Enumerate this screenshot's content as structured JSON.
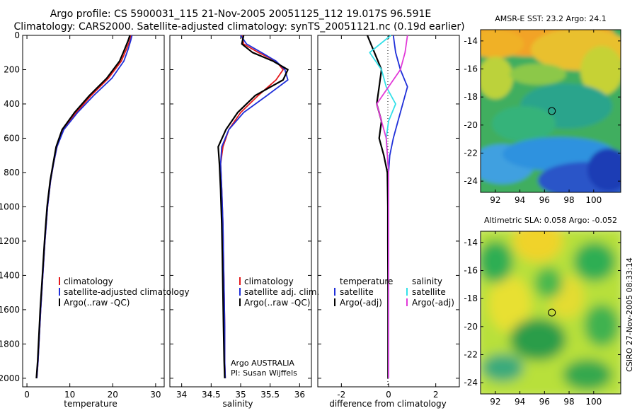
{
  "header": {
    "line1": "Argo profile: CS 5900031_115 21-Nov-2005 20051125_112 19.017S 96.591E",
    "line2": "Climatology: CARS2000. Satellite-adjusted climatology: synTS_20051121.nc (0.19d earlier)"
  },
  "colors": {
    "climatology": "#e41a1c",
    "satellite": "#1f2fd9",
    "argo": "#000000",
    "salinity_sat": "#33e0e8",
    "salinity_argo": "#e23ad8"
  },
  "footer": {
    "agency": "Argo AUSTRALIA",
    "pi": "PI: Susan Wijffels",
    "credit": "CSIRO 27-Nov-2005 08:33:14"
  },
  "chart_data": [
    {
      "type": "line",
      "title": "",
      "xlabel": "temperature",
      "ylabel": "",
      "xlim": [
        -1,
        32
      ],
      "ylim": [
        2050,
        0
      ],
      "xticks": [
        0,
        10,
        20,
        30
      ],
      "yticks": [
        0,
        200,
        400,
        600,
        800,
        1000,
        1200,
        1400,
        1600,
        1800,
        2000
      ],
      "legend": [
        "climatology",
        "satellite-adjusted climatology",
        "Argo(..raw -QC)"
      ],
      "series": [
        {
          "name": "climatology",
          "color": "#e41a1c",
          "x": [
            24.3,
            24.0,
            23.2,
            22.0,
            19.0,
            15.0,
            11.5,
            8.5,
            7.0,
            6.2,
            5.5,
            4.8,
            4.2,
            3.7,
            3.2,
            2.9,
            2.6,
            2.3
          ],
          "y": [
            0,
            30,
            80,
            150,
            250,
            350,
            450,
            550,
            650,
            750,
            850,
            1000,
            1200,
            1400,
            1600,
            1750,
            1900,
            2000
          ]
        },
        {
          "name": "satellite-adjusted climatology",
          "color": "#1f2fd9",
          "x": [
            24.5,
            24.2,
            23.6,
            22.6,
            19.8,
            15.6,
            11.8,
            8.6,
            7.0,
            6.2,
            5.5,
            4.8,
            4.2,
            3.7,
            3.2,
            2.9,
            2.6,
            2.3
          ],
          "y": [
            0,
            30,
            80,
            150,
            250,
            350,
            450,
            550,
            650,
            750,
            850,
            1000,
            1200,
            1400,
            1600,
            1750,
            1900,
            2000
          ]
        },
        {
          "name": "Argo(..raw -QC)",
          "color": "#000000",
          "x": [
            24.0,
            23.6,
            22.8,
            21.6,
            18.6,
            14.6,
            11.1,
            8.2,
            6.8,
            6.1,
            5.4,
            4.7,
            4.1,
            3.6,
            3.1,
            2.8,
            2.5,
            2.2
          ],
          "y": [
            0,
            30,
            80,
            150,
            250,
            350,
            450,
            550,
            650,
            750,
            850,
            1000,
            1200,
            1400,
            1600,
            1750,
            1900,
            2000
          ]
        }
      ]
    },
    {
      "type": "line",
      "title": "",
      "xlabel": "salinity",
      "ylabel": "",
      "xlim": [
        33.8,
        36.2
      ],
      "ylim": [
        2050,
        0
      ],
      "xticks": [
        34,
        34.5,
        35,
        35.5,
        36
      ],
      "xticklabels": [
        "34",
        "34.5",
        "35",
        "35.5",
        "36"
      ],
      "legend": [
        "climatology",
        "satellite adj. clim.",
        "Argo(..raw -QC)"
      ],
      "series": [
        {
          "name": "climatology",
          "color": "#e41a1c",
          "x": [
            35.02,
            35.05,
            35.3,
            35.6,
            35.72,
            35.6,
            35.3,
            35.0,
            34.8,
            34.7,
            34.66,
            34.68,
            34.7,
            34.71,
            34.72,
            34.73,
            34.73,
            34.74
          ],
          "y": [
            0,
            50,
            100,
            150,
            200,
            260,
            350,
            450,
            550,
            650,
            750,
            900,
            1100,
            1300,
            1500,
            1700,
            1900,
            2000
          ]
        },
        {
          "name": "satellite adj. clim.",
          "color": "#1f2fd9",
          "x": [
            35.0,
            35.1,
            35.35,
            35.6,
            35.75,
            35.8,
            35.45,
            35.05,
            34.8,
            34.68,
            34.66,
            34.68,
            34.7,
            34.71,
            34.72,
            34.73,
            34.73,
            34.74
          ],
          "y": [
            0,
            50,
            100,
            150,
            200,
            260,
            350,
            450,
            550,
            650,
            750,
            900,
            1100,
            1300,
            1500,
            1700,
            1900,
            2000
          ]
        },
        {
          "name": "Argo(..raw -QC)",
          "color": "#000000",
          "x": [
            35.05,
            35.02,
            35.2,
            35.55,
            35.8,
            35.72,
            35.25,
            34.95,
            34.75,
            34.62,
            34.64,
            34.66,
            34.68,
            34.69,
            34.7,
            34.71,
            34.72,
            34.73
          ],
          "y": [
            0,
            50,
            100,
            150,
            200,
            260,
            350,
            450,
            550,
            650,
            750,
            900,
            1100,
            1300,
            1500,
            1700,
            1900,
            2000
          ]
        }
      ]
    },
    {
      "type": "line",
      "title": "",
      "xlabel": "difference from climatology",
      "ylabel": "",
      "xlim": [
        -3,
        3
      ],
      "ylim": [
        2050,
        0
      ],
      "xticks": [
        -2,
        0,
        2
      ],
      "legend": [
        "temperature",
        "satellite",
        "Argo(-adj)",
        "salinity",
        "satellite",
        "Argo(-adj)"
      ],
      "series": [
        {
          "name": "temperature satellite",
          "color": "#1f2fd9",
          "x": [
            0.2,
            0.3,
            0.5,
            0.8,
            0.6,
            0.4,
            0.2,
            0.05,
            0.0,
            0.0,
            0.0,
            0.0,
            0.0,
            0.0
          ],
          "y": [
            0,
            100,
            200,
            300,
            400,
            500,
            600,
            700,
            800,
            1000,
            1200,
            1500,
            1800,
            2000
          ]
        },
        {
          "name": "temperature Argo(-adj)",
          "color": "#000000",
          "x": [
            -0.9,
            -0.6,
            -0.3,
            -0.4,
            -0.5,
            -0.3,
            -0.4,
            -0.2,
            -0.05,
            -0.03,
            -0.03,
            -0.02,
            -0.02,
            -0.02
          ],
          "y": [
            0,
            100,
            200,
            300,
            400,
            500,
            600,
            700,
            800,
            1000,
            1200,
            1500,
            1800,
            2000
          ]
        },
        {
          "name": "salinity satellite",
          "color": "#33e0e8",
          "x": [
            0.1,
            -0.8,
            -0.3,
            -0.1,
            0.3,
            0.0,
            -0.1,
            -0.05,
            0.0,
            0.0,
            0.0,
            0.0,
            0.0,
            0.0
          ],
          "y": [
            0,
            100,
            200,
            300,
            400,
            500,
            600,
            700,
            800,
            1000,
            1200,
            1500,
            1800,
            2000
          ]
        },
        {
          "name": "salinity Argo(-adj)",
          "color": "#e23ad8",
          "x": [
            0.8,
            0.7,
            0.5,
            0.0,
            -0.5,
            -0.3,
            -0.1,
            -0.05,
            0.0,
            0.0,
            0.0,
            0.0,
            0.0,
            0.0
          ],
          "y": [
            0,
            100,
            200,
            300,
            400,
            500,
            600,
            700,
            800,
            1000,
            1200,
            1500,
            1800,
            2000
          ]
        }
      ]
    },
    {
      "type": "heatmap",
      "title": "AMSR-E SST: 23.2 Argo: 24.1",
      "xlim": [
        90.8,
        102.2
      ],
      "ylim": [
        -24.8,
        -13.2
      ],
      "xticks": [
        92,
        94,
        96,
        98,
        100
      ],
      "yticks": [
        -14,
        -16,
        -18,
        -20,
        -22,
        -24
      ],
      "marker": {
        "x": 96.6,
        "y": -19.0
      }
    },
    {
      "type": "heatmap",
      "title": "Altimetric SLA: 0.058 Argo: -0.052",
      "xlim": [
        90.8,
        102.2
      ],
      "ylim": [
        -24.8,
        -13.2
      ],
      "xticks": [
        92,
        94,
        96,
        98,
        100
      ],
      "yticks": [
        -14,
        -16,
        -18,
        -20,
        -22,
        -24
      ],
      "marker": {
        "x": 96.6,
        "y": -19.0
      }
    }
  ]
}
